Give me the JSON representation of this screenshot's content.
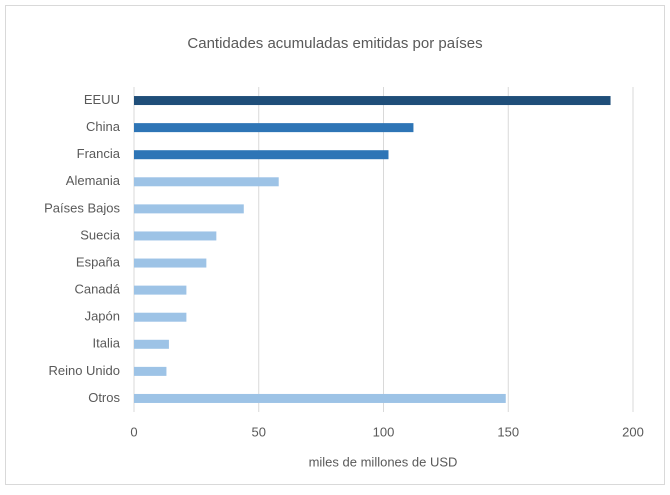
{
  "chart_data": {
    "type": "barh",
    "title": "Cantidades acumuladas emitidas por países",
    "xlabel": "miles de millones de USD",
    "categories": [
      "EEUU",
      "China",
      "Francia",
      "Alemania",
      "Países Bajos",
      "Suecia",
      "España",
      "Canadá",
      "Japón",
      "Italia",
      "Reino Unido",
      "Otros"
    ],
    "values": [
      191,
      112,
      102,
      58,
      44,
      33,
      29,
      21,
      21,
      14,
      13,
      149
    ],
    "colors": [
      "#1f4e79",
      "#2e75b6",
      "#2e75b6",
      "#9dc3e6",
      "#9dc3e6",
      "#9dc3e6",
      "#9dc3e6",
      "#9dc3e6",
      "#9dc3e6",
      "#9dc3e6",
      "#9dc3e6",
      "#9dc3e6"
    ],
    "xlim": [
      0,
      200
    ],
    "xticks": [
      0,
      50,
      100,
      150,
      200
    ],
    "grid": true
  }
}
